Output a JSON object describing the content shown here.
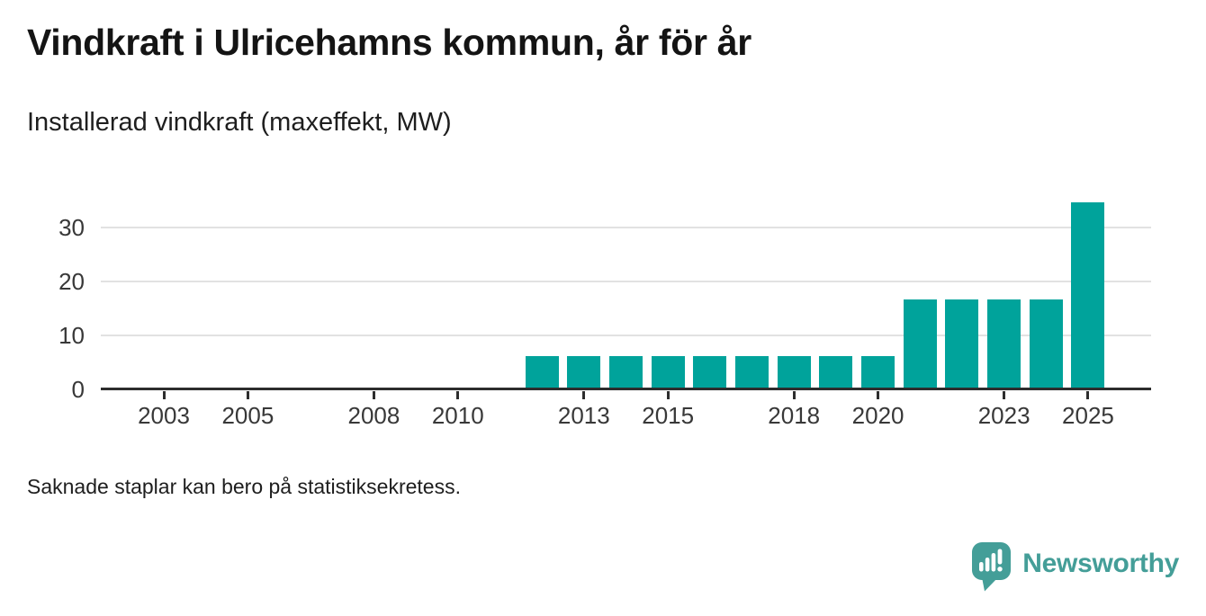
{
  "branding": {
    "wordmark": "Newsworthy",
    "logo_icon": "newsworthy-speech-bubble-bar-chart-icon",
    "logo_color": "#449e98",
    "logo_glyph_color": "#ffffff"
  },
  "chart_data": {
    "type": "bar",
    "title": "Vindkraft i Ulricehamns kommun, år för år",
    "subtitle": "Installerad vindkraft (maxeffekt, MW)",
    "footnote": "Saknade staplar kan bero på statistiksekretess.",
    "unit": "MW",
    "bar_color": "#00a39b",
    "grid": "horizontal",
    "legend": "none",
    "xlim": [
      2002,
      2026
    ],
    "ylim": [
      0,
      36
    ],
    "x_ticks": [
      2003,
      2005,
      2008,
      2010,
      2013,
      2015,
      2018,
      2020,
      2023,
      2025
    ],
    "y_ticks": [
      0,
      10,
      20,
      30
    ],
    "series": [
      {
        "name": "Installerad vindkraft (maxeffekt, MW)",
        "points": [
          {
            "year": 2012,
            "value": 6.2
          },
          {
            "year": 2013,
            "value": 6.2
          },
          {
            "year": 2014,
            "value": 6.2
          },
          {
            "year": 2015,
            "value": 6.2
          },
          {
            "year": 2016,
            "value": 6.2
          },
          {
            "year": 2017,
            "value": 6.2
          },
          {
            "year": 2018,
            "value": 6.2
          },
          {
            "year": 2019,
            "value": 6.2
          },
          {
            "year": 2020,
            "value": 6.2
          },
          {
            "year": 2021,
            "value": 16.7
          },
          {
            "year": 2022,
            "value": 16.7
          },
          {
            "year": 2023,
            "value": 16.7
          },
          {
            "year": 2024,
            "value": 16.7
          },
          {
            "year": 2025,
            "value": 34.6
          }
        ]
      }
    ],
    "missing_bars_years": [
      2002,
      2003,
      2004,
      2005,
      2006,
      2007,
      2008,
      2009,
      2010,
      2011
    ]
  }
}
